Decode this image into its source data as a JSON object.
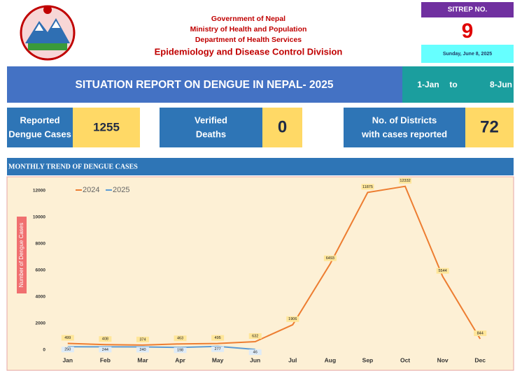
{
  "header": {
    "lines": [
      "Government of Nepal",
      "Ministry of Health and Population",
      "Department of Health Services"
    ],
    "division": "Epidemiology and Disease Control Division",
    "sitrep_label": "SITREP NO.",
    "sitrep_number": 9,
    "date": "Sunday, June 8, 2025"
  },
  "banner": {
    "title": "SITUATION REPORT ON DENGUE IN NEPAL- 2025",
    "from": "1-Jan",
    "to_word": "to",
    "to": "8-Jun"
  },
  "cards": [
    {
      "label_lines": [
        "Reported",
        "Dengue Cases"
      ],
      "value": 1255
    },
    {
      "label_lines": [
        "Verified",
        "Deaths"
      ],
      "value": 0
    },
    {
      "label_lines": [
        "No. of Districts",
        "with cases reported"
      ],
      "value": 72
    }
  ],
  "section_title": "MONTHLY TREND OF DENGUE CASES",
  "chart_data": {
    "type": "line",
    "y_label": "Number of Dengue Cases",
    "categories": [
      "Jan",
      "Feb",
      "Mar",
      "Apr",
      "May",
      "Jun",
      "Jul",
      "Aug",
      "Sep",
      "Oct",
      "Nov",
      "Dec"
    ],
    "series": [
      {
        "name": "2024",
        "color": "#ed7d31",
        "values": [
          499,
          408,
          374,
          463,
          495,
          632,
          1906,
          6493,
          11875,
          12332,
          5544,
          844
        ]
      },
      {
        "name": "2025",
        "color": "#5b9bd5",
        "values": [
          250,
          244,
          240,
          198,
          277,
          46,
          null,
          null,
          null,
          null,
          null,
          null
        ]
      }
    ],
    "ylim": [
      0,
      13000
    ],
    "yticks": [
      0,
      2000,
      4000,
      6000,
      8000,
      10000,
      12000
    ],
    "legend": "top-left"
  }
}
